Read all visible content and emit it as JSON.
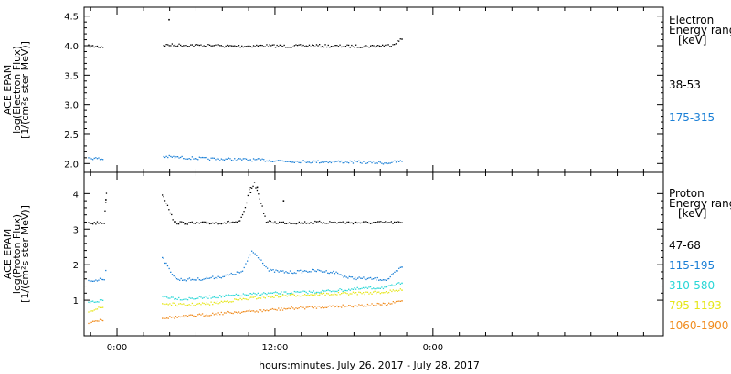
{
  "x_axis_label": "hours:minutes, July 26, 2017 - July 28, 2017",
  "chart_data": [
    {
      "type": "scatter",
      "ylabel": [
        "ACE EPAM",
        "log(Electron Flux)",
        "[1/(cm²s ster MeV)]"
      ],
      "ylim": [
        1.85,
        4.65
      ],
      "yticks": [
        2.0,
        2.5,
        3.0,
        3.5,
        4.0,
        4.5
      ],
      "legend_title": [
        "Electron",
        "Energy range",
        "[keV]"
      ],
      "x_unit": "hours since July 26, 2017 00:00",
      "xlim": [
        -2.5,
        41.5
      ],
      "xticks": [
        {
          "x": 0,
          "label": "0:00"
        },
        {
          "x": 12,
          "label": "12:00"
        },
        {
          "x": 24,
          "label": "0:00"
        }
      ],
      "series": [
        {
          "name": "38-53",
          "color": "#000000",
          "points": [
            [
              -2.2,
              4.0
            ],
            [
              -1.0,
              3.99
            ],
            [
              3.5,
              4.02
            ],
            [
              5,
              4.02
            ],
            [
              7,
              4.01
            ],
            [
              9,
              4.0
            ],
            [
              11,
              4.01
            ],
            [
              13,
              4.0
            ],
            [
              15,
              4.01
            ],
            [
              17,
              4.0
            ],
            [
              19,
              4.0
            ],
            [
              20.8,
              4.02
            ],
            [
              21.6,
              4.12
            ]
          ],
          "extra": [
            [
              3.9,
              4.45
            ]
          ]
        },
        {
          "name": "175-315",
          "color": "#1a7fd6",
          "points": [
            [
              -2.2,
              2.11
            ],
            [
              -1.0,
              2.08
            ],
            [
              3.5,
              2.13
            ],
            [
              5,
              2.11
            ],
            [
              7,
              2.09
            ],
            [
              9,
              2.08
            ],
            [
              11,
              2.07
            ],
            [
              13,
              2.05
            ],
            [
              15,
              2.04
            ],
            [
              17,
              2.04
            ],
            [
              19,
              2.03
            ],
            [
              20.5,
              2.02
            ],
            [
              21.6,
              2.05
            ]
          ]
        }
      ]
    },
    {
      "type": "scatter",
      "ylabel": [
        "ACE EPAM",
        "log(Proton Flux)",
        "[1/(cm²s ster MeV)]"
      ],
      "ylim": [
        0.0,
        4.6
      ],
      "yticks": [
        1,
        2,
        3,
        4
      ],
      "legend_title": [
        "Proton",
        "Energy range",
        "[keV]"
      ],
      "x_unit": "hours since July 26, 2017 00:00",
      "xlim": [
        -2.5,
        41.5
      ],
      "xticks": [
        {
          "x": 0,
          "label": "0:00"
        },
        {
          "x": 12,
          "label": "12:00"
        },
        {
          "x": 24,
          "label": "0:00"
        }
      ],
      "series": [
        {
          "name": "47-68",
          "color": "#000000",
          "points": [
            [
              -2.2,
              3.18
            ],
            [
              -1.0,
              3.2
            ],
            [
              -0.9,
              3.8
            ],
            [
              -0.8,
              4.25
            ],
            [
              3.4,
              4.0
            ],
            [
              3.8,
              3.7
            ],
            [
              4.3,
              3.2
            ],
            [
              6,
              3.18
            ],
            [
              8,
              3.2
            ],
            [
              9.3,
              3.22
            ],
            [
              9.7,
              3.6
            ],
            [
              10.0,
              4.1
            ],
            [
              10.4,
              4.3
            ],
            [
              10.8,
              3.9
            ],
            [
              11.3,
              3.22
            ],
            [
              12.5,
              3.2
            ],
            [
              14,
              3.2
            ],
            [
              16,
              3.21
            ],
            [
              18,
              3.2
            ],
            [
              20,
              3.2
            ],
            [
              21.6,
              3.2
            ]
          ],
          "extra": [
            [
              -0.9,
              3.85
            ],
            [
              10.1,
              4.05
            ],
            [
              10.6,
              4.2
            ],
            [
              12.6,
              3.82
            ]
          ]
        },
        {
          "name": "115-195",
          "color": "#1a7fd6",
          "points": [
            [
              -2.2,
              1.55
            ],
            [
              -1.0,
              1.62
            ],
            [
              -0.8,
              2.1
            ],
            [
              3.4,
              2.25
            ],
            [
              3.8,
              1.95
            ],
            [
              4.5,
              1.6
            ],
            [
              6,
              1.6
            ],
            [
              8,
              1.68
            ],
            [
              9.5,
              1.82
            ],
            [
              10.2,
              2.4
            ],
            [
              10.8,
              2.2
            ],
            [
              11.5,
              1.85
            ],
            [
              13,
              1.8
            ],
            [
              15,
              1.85
            ],
            [
              16.5,
              1.8
            ],
            [
              17.5,
              1.65
            ],
            [
              19,
              1.62
            ],
            [
              20.5,
              1.6
            ],
            [
              21.6,
              1.95
            ]
          ]
        },
        {
          "name": "310-580",
          "color": "#28d6d6",
          "points": [
            [
              -2.2,
              0.95
            ],
            [
              -1.0,
              1.02
            ],
            [
              3.4,
              1.12
            ],
            [
              5,
              1.05
            ],
            [
              7,
              1.1
            ],
            [
              9,
              1.15
            ],
            [
              11,
              1.2
            ],
            [
              13,
              1.22
            ],
            [
              15,
              1.25
            ],
            [
              17,
              1.3
            ],
            [
              19,
              1.35
            ],
            [
              20.5,
              1.38
            ],
            [
              21.6,
              1.5
            ]
          ]
        },
        {
          "name": "795-1193",
          "color": "#e6e619",
          "points": [
            [
              -2.2,
              0.72
            ],
            [
              -1.0,
              0.82
            ],
            [
              3.4,
              0.92
            ],
            [
              5,
              0.88
            ],
            [
              7,
              0.92
            ],
            [
              9,
              1.02
            ],
            [
              11,
              1.1
            ],
            [
              13,
              1.15
            ],
            [
              15,
              1.18
            ],
            [
              17,
              1.2
            ],
            [
              19,
              1.22
            ],
            [
              20.5,
              1.25
            ],
            [
              21.6,
              1.3
            ]
          ]
        },
        {
          "name": "1060-1900",
          "color": "#f08c1e",
          "points": [
            [
              -2.2,
              0.4
            ],
            [
              -1.0,
              0.48
            ],
            [
              3.4,
              0.52
            ],
            [
              5,
              0.55
            ],
            [
              7,
              0.62
            ],
            [
              9,
              0.68
            ],
            [
              11,
              0.72
            ],
            [
              13,
              0.78
            ],
            [
              15,
              0.82
            ],
            [
              17,
              0.85
            ],
            [
              19,
              0.88
            ],
            [
              20.5,
              0.9
            ],
            [
              21.6,
              1.0
            ]
          ]
        }
      ]
    }
  ]
}
